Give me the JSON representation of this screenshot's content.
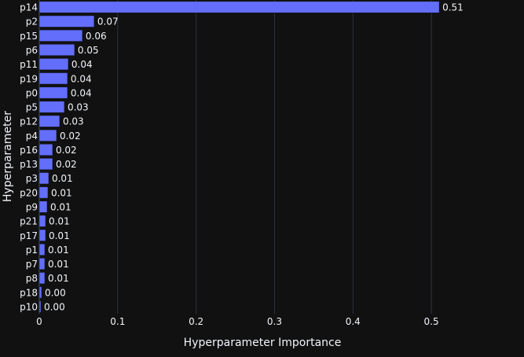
{
  "chart_data": {
    "type": "bar",
    "orientation": "horizontal",
    "title": "",
    "xlabel": "Hyperparameter Importance",
    "ylabel": "Hyperparameter",
    "xlim": [
      0,
      0.56
    ],
    "xticks": [
      0,
      0.1,
      0.2,
      0.3,
      0.4,
      0.5
    ],
    "xtick_labels": [
      "0",
      "0.1",
      "0.2",
      "0.3",
      "0.4",
      "0.5"
    ],
    "grid": true,
    "categories": [
      "p14",
      "p2",
      "p15",
      "p6",
      "p11",
      "p19",
      "p0",
      "p5",
      "p12",
      "p4",
      "p16",
      "p13",
      "p3",
      "p20",
      "p9",
      "p21",
      "p17",
      "p1",
      "p7",
      "p8",
      "p18",
      "p10"
    ],
    "values": [
      0.51,
      0.07,
      0.055,
      0.045,
      0.037,
      0.036,
      0.036,
      0.032,
      0.026,
      0.022,
      0.017,
      0.017,
      0.012,
      0.011,
      0.01,
      0.008,
      0.008,
      0.007,
      0.007,
      0.007,
      0.003,
      0.002
    ],
    "data_labels": [
      "0.51",
      "0.07",
      "0.06",
      "0.05",
      "0.04",
      "0.04",
      "0.04",
      "0.03",
      "0.03",
      "0.02",
      "0.02",
      "0.02",
      "0.01",
      "0.01",
      "0.01",
      "0.01",
      "0.01",
      "0.01",
      "0.01",
      "0.01",
      "0.00",
      "0.00"
    ],
    "colors": {
      "background": "#111111",
      "bar": "#636efa",
      "grid": "#283442",
      "text": "#f2f5fa"
    }
  }
}
